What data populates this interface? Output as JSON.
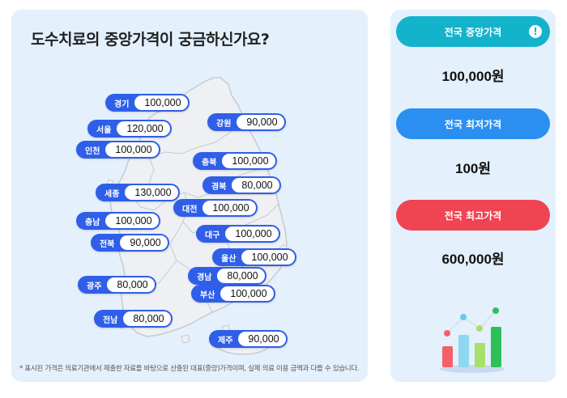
{
  "map": {
    "title": "도수치료의 중앙가격이 궁금하신가요?",
    "footnote": "* 표시된 가격은 의료기관에서 제출한 자료를 바탕으로 산출된 대표(중앙)가격이며, 실제 의료 이용 금액과 다를 수 있습니다.",
    "regions": [
      {
        "name": "경기",
        "price": "100,000"
      },
      {
        "name": "강원",
        "price": "90,000"
      },
      {
        "name": "서울",
        "price": "120,000"
      },
      {
        "name": "인천",
        "price": "100,000"
      },
      {
        "name": "충북",
        "price": "100,000"
      },
      {
        "name": "경북",
        "price": "80,000"
      },
      {
        "name": "세종",
        "price": "130,000"
      },
      {
        "name": "대전",
        "price": "100,000"
      },
      {
        "name": "충남",
        "price": "100,000"
      },
      {
        "name": "대구",
        "price": "100,000"
      },
      {
        "name": "전북",
        "price": "90,000"
      },
      {
        "name": "울산",
        "price": "100,000"
      },
      {
        "name": "경남",
        "price": "80,000"
      },
      {
        "name": "광주",
        "price": "80,000"
      },
      {
        "name": "부산",
        "price": "100,000"
      },
      {
        "name": "전남",
        "price": "80,000"
      },
      {
        "name": "제주",
        "price": "90,000"
      }
    ]
  },
  "stats": {
    "median": {
      "label": "전국 중앙가격",
      "value": "100,000원",
      "color": "#14b3cc"
    },
    "min": {
      "label": "전국 최저가격",
      "value": "100원",
      "color": "#2a8ff0"
    },
    "max": {
      "label": "전국 최고가격",
      "value": "600,000원",
      "color": "#f04452"
    }
  },
  "icons": {
    "alert": "exclamation-circle-icon",
    "chart": "bar-chart-icon"
  },
  "colors": {
    "panel_bg": "#e4f0fb",
    "pill": "#2f5fe8",
    "map_fill": "#eef0f3",
    "map_stroke": "#c5cbd3"
  }
}
